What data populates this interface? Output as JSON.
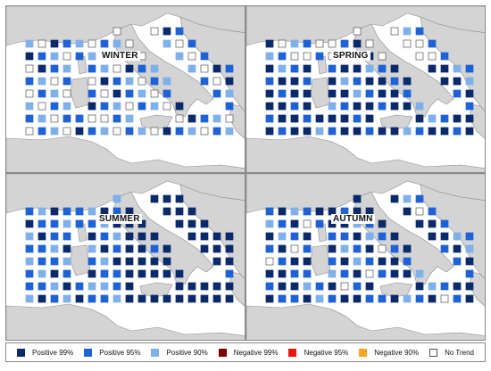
{
  "figure": {
    "colors": {
      "land": "#d4d4d4",
      "sea": "#ffffff",
      "coast": "#8c8c8c"
    },
    "panels": [
      {
        "id": "winter",
        "title": "WINTER"
      },
      {
        "id": "spring",
        "title": "SPRING"
      },
      {
        "id": "summer",
        "title": "SUMMER"
      },
      {
        "id": "autumn",
        "title": "AUTUMN"
      }
    ]
  },
  "legend": {
    "items": [
      {
        "key": "p99",
        "label": "Positive 99%",
        "color": "#0b2a6b"
      },
      {
        "key": "p95",
        "label": "Positive 95%",
        "color": "#1f62d6"
      },
      {
        "key": "p90",
        "label": "Positive 90%",
        "color": "#7fb0ea"
      },
      {
        "key": "n99",
        "label": "Negative 99%",
        "color": "#7a0000"
      },
      {
        "key": "n95",
        "label": "Negative 95%",
        "color": "#e8160f"
      },
      {
        "key": "n90",
        "label": "Negative 90%",
        "color": "#f5a623"
      },
      {
        "key": "nt",
        "label": "No Trend",
        "color": "#ffffff"
      }
    ]
  }
}
